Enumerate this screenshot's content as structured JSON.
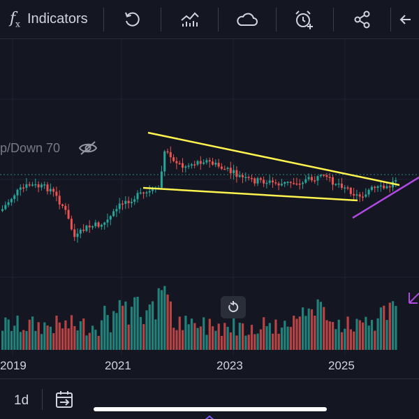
{
  "toolbar": {
    "fx_symbol": "f",
    "fx_sub": "x",
    "indicators_label": "Indicators",
    "icons": [
      "undo-icon",
      "compare-icon",
      "cloud-icon",
      "alert-clock-icon",
      "share-icon",
      "back-arrow-icon"
    ]
  },
  "indicator": {
    "label": "p/Down 70",
    "visibility_icon": "eye-off-icon"
  },
  "chart": {
    "background": "#141722",
    "up_color": "#26a69a",
    "down_color": "#ef5350",
    "trendline_color": "#fff44f",
    "support_line_color": "#b04ae2",
    "price_line_color": "#26a69a"
  },
  "xaxis": {
    "labels": [
      "2019",
      "2021",
      "2023",
      "2025"
    ]
  },
  "bottom": {
    "interval": "1d",
    "goto_icon": "goto-date-icon"
  }
}
